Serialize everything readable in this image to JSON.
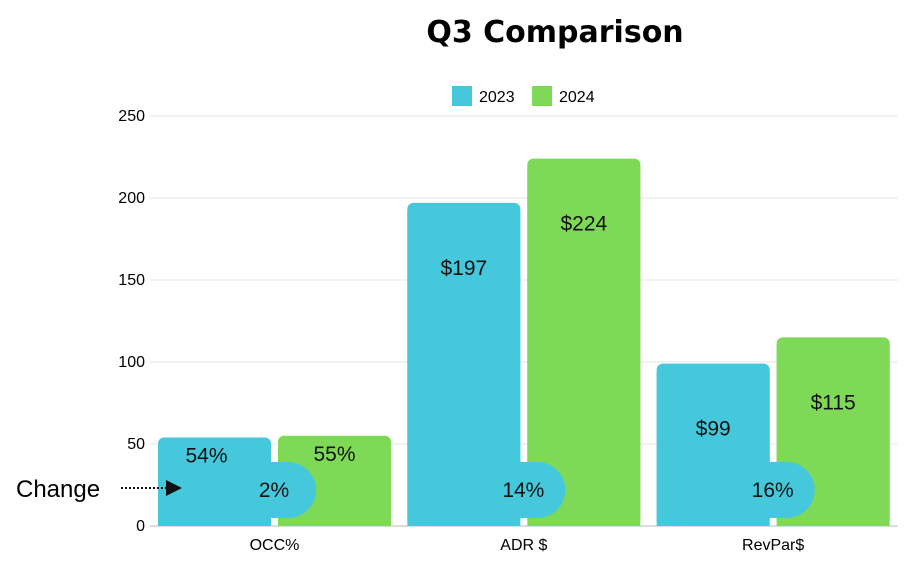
{
  "chart_data": {
    "type": "bar",
    "title": "Q3 Comparison",
    "categories": [
      "OCC%",
      "ADR $",
      "RevPar$"
    ],
    "series": [
      {
        "name": "2023",
        "values": [
          54,
          197,
          99
        ],
        "labels": [
          "54%",
          "$197",
          "$99"
        ],
        "color": "#45C8DC"
      },
      {
        "name": "2024",
        "values": [
          55,
          224,
          115
        ],
        "labels": [
          "55%",
          "$224",
          "$115"
        ],
        "color": "#7ED957"
      }
    ],
    "change_labels": [
      "2%",
      "14%",
      "16%"
    ],
    "annotation": "Change",
    "ylim": [
      0,
      250
    ],
    "yticks": [
      0,
      50,
      100,
      150,
      200,
      250
    ],
    "grid": true,
    "legend": "top-center"
  }
}
